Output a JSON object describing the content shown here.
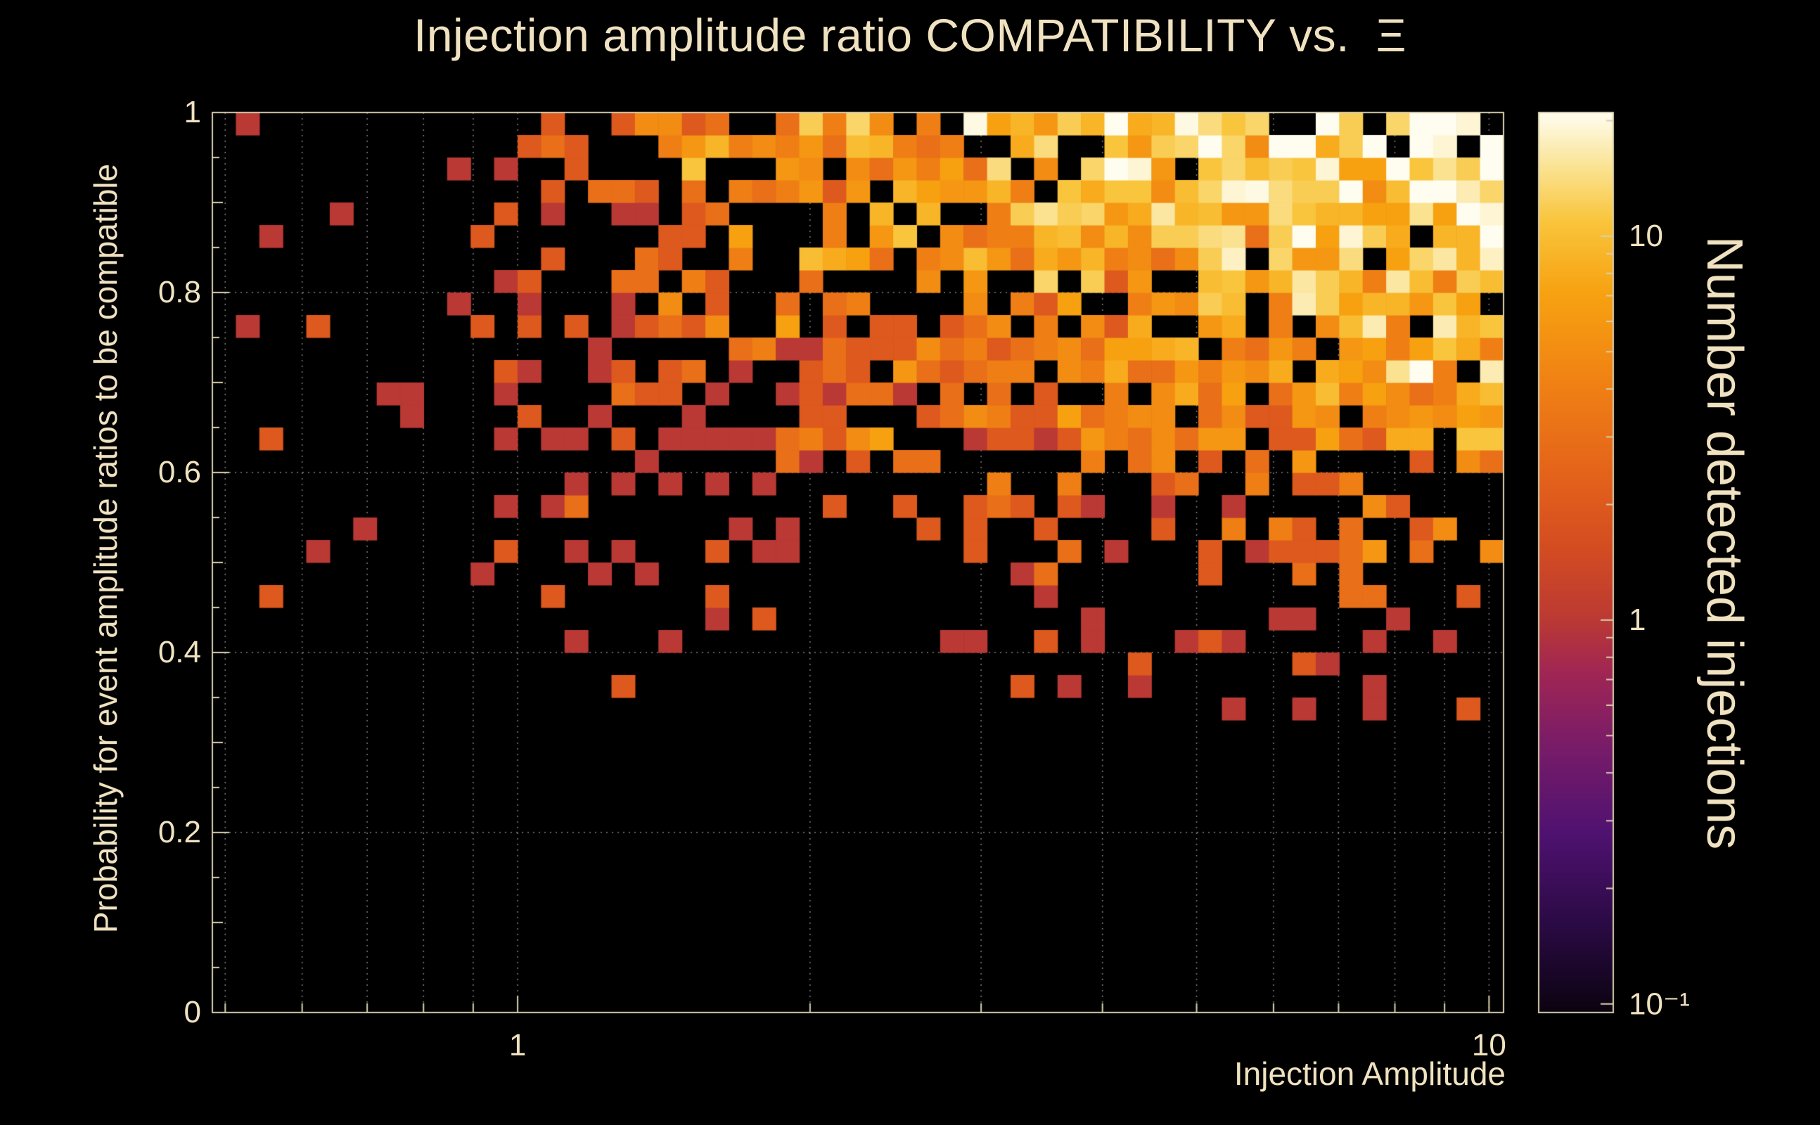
{
  "colors": {
    "background": "#000000",
    "text": "#f0e2c0",
    "frame": "#d9cfae",
    "grid": "#ffffff"
  },
  "chart_data": {
    "type": "heatmap",
    "title": "Injection amplitude ratio COMPATIBILITY vs.  Ξ",
    "xlabel": "Injection Amplitude",
    "ylabel": "Probability for event amplitude ratios to be compatible",
    "zlabel": "Number detected injections",
    "x_scale": "log",
    "x_range": [
      0.485,
      10.35
    ],
    "y_scale": "linear",
    "y_range": [
      0,
      1
    ],
    "z_scale": "log",
    "z_range": [
      0.095,
      21
    ],
    "x_ticks": [
      {
        "value": 1,
        "label": "1"
      },
      {
        "value": 10,
        "label": "10"
      }
    ],
    "x_minor_ticks": [
      0.5,
      0.6,
      0.7,
      0.8,
      0.9,
      2,
      3,
      4,
      5,
      6,
      7,
      8,
      9
    ],
    "y_ticks": [
      {
        "value": 0,
        "label": "0"
      },
      {
        "value": 0.2,
        "label": "0.2"
      },
      {
        "value": 0.4,
        "label": "0.4"
      },
      {
        "value": 0.6,
        "label": "0.6"
      },
      {
        "value": 0.8,
        "label": "0.8"
      },
      {
        "value": 1,
        "label": "1"
      }
    ],
    "y_minor_step": 0.05,
    "z_ticks": [
      {
        "value": 10,
        "label": "10"
      },
      {
        "value": 1,
        "label": "1"
      },
      {
        "value": 0.1,
        "label": "10⁻¹"
      }
    ],
    "z_minor_ticks": [
      0.2,
      0.3,
      0.4,
      0.5,
      0.6,
      0.7,
      0.8,
      0.9,
      2,
      3,
      4,
      5,
      6,
      7,
      8,
      9,
      20
    ],
    "grid": {
      "horizontal": [
        0.2,
        0.4,
        0.6,
        0.8,
        1.0
      ],
      "style": "dotted"
    },
    "palette": [
      [
        0.0,
        "#0b0310"
      ],
      [
        0.1,
        "#2b0a45"
      ],
      [
        0.2,
        "#4f1270"
      ],
      [
        0.3,
        "#7a1c68"
      ],
      [
        0.38,
        "#a12653"
      ],
      [
        0.44,
        "#bc3a32"
      ],
      [
        0.52,
        "#d44d21"
      ],
      [
        0.6,
        "#e4631a"
      ],
      [
        0.7,
        "#f08114"
      ],
      [
        0.8,
        "#f7a211"
      ],
      [
        0.88,
        "#f9c53c"
      ],
      [
        0.94,
        "#fae393"
      ],
      [
        1.0,
        "#fffdf0"
      ]
    ],
    "bins": {
      "nx": 55,
      "ny": 40
    },
    "distribution_model": {
      "seed": 42,
      "bands": [
        {
          "below": 0.335,
          "p": 0
        },
        {
          "below": 0.4,
          "p": 0.13
        },
        {
          "below": 0.5,
          "p": 0.26
        },
        {
          "below": 0.62,
          "p": 0.42
        },
        {
          "below": 1.01,
          "p": 0.82
        }
      ],
      "left_t": 0.22,
      "left_factor": 0.1,
      "h0": 0.5,
      "h1": 1.2,
      "top_boost_y": 0.955,
      "top_boost": 1.2,
      "p_cap": 0.93,
      "amp": 19,
      "pow_x": 2.0,
      "pow_y": 1.9,
      "y0": 0.3,
      "noise_sigma": 0.45,
      "low_band_y": 0.45,
      "low_band_max": 3,
      "corner_boost_t": 0.9,
      "corner_boost_y": 0.9,
      "corner_boost": 1.25
    }
  }
}
